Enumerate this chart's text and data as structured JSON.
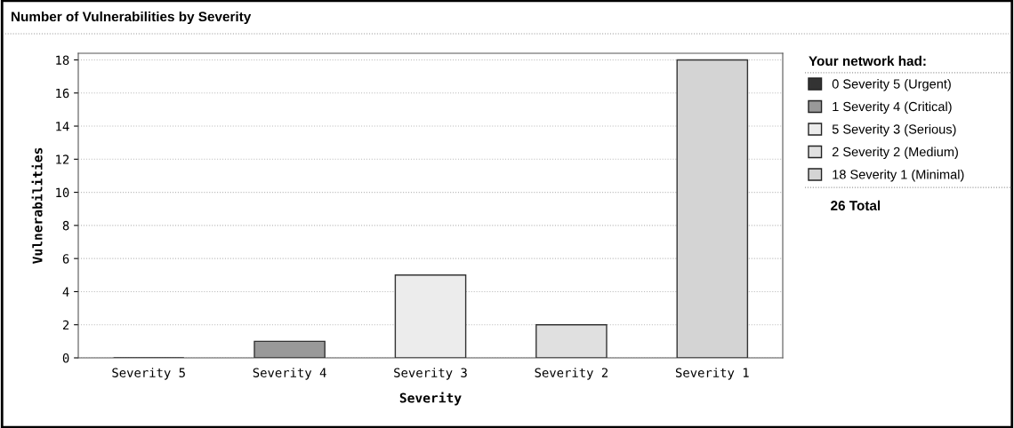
{
  "chart_data": {
    "type": "bar",
    "title": "Number of Vulnerabilities by Severity",
    "xlabel": "Severity",
    "ylabel": "Vulnerabilities",
    "legend_title": "Your network had:",
    "categories": [
      "Severity 5",
      "Severity 4",
      "Severity 3",
      "Severity 2",
      "Severity 1"
    ],
    "series": [
      {
        "name": "0 Severity 5 (Urgent)",
        "color": "#333333",
        "values": [
          0,
          null,
          null,
          null,
          null
        ]
      },
      {
        "name": "1 Severity 4 (Critical)",
        "color": "#999999",
        "values": [
          null,
          1,
          null,
          null,
          null
        ]
      },
      {
        "name": "5 Severity 3 (Serious)",
        "color": "#ececec",
        "values": [
          null,
          null,
          5,
          null,
          null
        ]
      },
      {
        "name": "2 Severity 2 (Medium)",
        "color": "#e0e0e0",
        "values": [
          null,
          null,
          null,
          2,
          null
        ]
      },
      {
        "name": "18 Severity 1 (Minimal)",
        "color": "#d4d4d4",
        "values": [
          null,
          null,
          null,
          null,
          18
        ]
      }
    ],
    "annotations": [
      "26 Total"
    ],
    "ylim": [
      0,
      18.4
    ],
    "yticks": [
      0,
      2,
      4,
      6,
      8,
      10,
      12,
      14,
      16,
      18
    ],
    "grid": "y",
    "legend": "right"
  }
}
